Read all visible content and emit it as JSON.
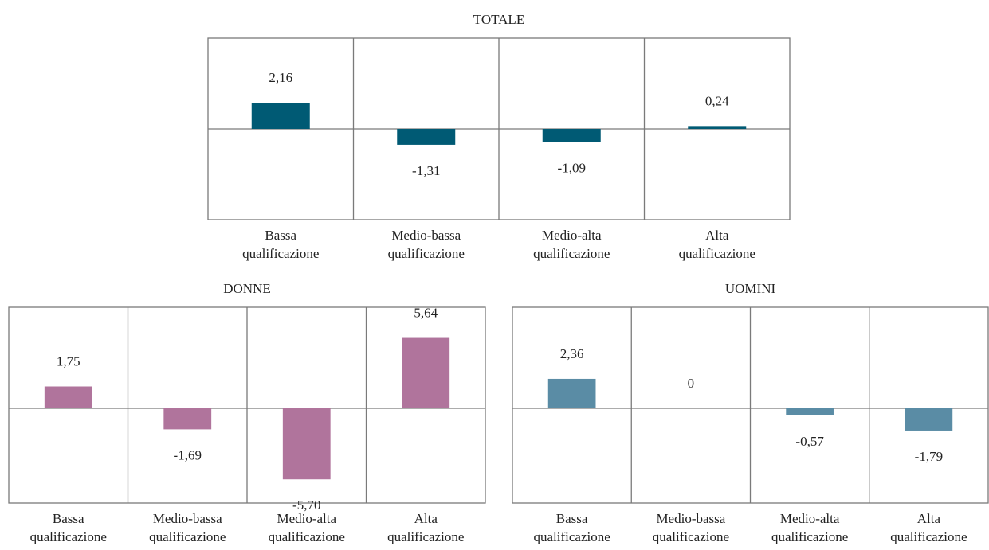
{
  "chart_data": [
    {
      "type": "bar",
      "title": "TOTALE",
      "categories": [
        "Bassa qualificazione",
        "Medio-bassa qualificazione",
        "Medio-alta qualificazione",
        "Alta qualificazione"
      ],
      "values": [
        2.16,
        -1.31,
        -1.09,
        0.24
      ],
      "value_labels": [
        "2,16",
        "-1,31",
        "-1,09",
        "0,24"
      ],
      "color": "#005a74",
      "ylim": [
        -7.5,
        7.5
      ]
    },
    {
      "type": "bar",
      "title": "DONNE",
      "categories": [
        "Bassa qualificazione",
        "Medio-bassa qualificazione",
        "Medio-alta qualificazione",
        "Alta qualificazione"
      ],
      "values": [
        1.75,
        -1.69,
        -5.7,
        5.64
      ],
      "value_labels": [
        "1,75",
        "-1,69",
        "-5,70",
        "5,64"
      ],
      "color": "#b0749c",
      "ylim": [
        -7.6,
        8.1
      ]
    },
    {
      "type": "bar",
      "title": "UOMINI",
      "categories": [
        "Bassa qualificazione",
        "Medio-bassa qualificazione",
        "Medio-alta qualificazione",
        "Alta qualificazione"
      ],
      "values": [
        2.36,
        0,
        -0.57,
        -1.79
      ],
      "value_labels": [
        "2,36",
        "0",
        "-0,57",
        "-1,79"
      ],
      "color": "#5a8ca5",
      "ylim": [
        -7.6,
        8.1
      ]
    }
  ]
}
